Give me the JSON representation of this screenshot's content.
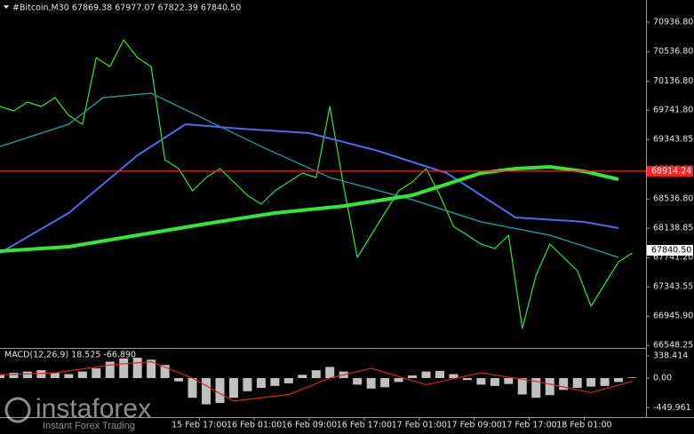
{
  "chart_data": [
    {
      "type": "line",
      "title": "#Bitcoin,M30  67869.38 67977.07 67822.39 67840.50",
      "xlim": [
        0,
        94
      ],
      "xticks": [
        {
          "value": 29,
          "label": "15 Feb 17:00"
        },
        {
          "value": 37,
          "label": "16 Feb 01:00"
        },
        {
          "value": 45,
          "label": "16 Feb 09:00"
        },
        {
          "value": 53,
          "label": "16 Feb 17:00"
        },
        {
          "value": 61,
          "label": "17 Feb 01:00"
        },
        {
          "value": 69,
          "label": "17 Feb 09:00"
        },
        {
          "value": 77,
          "label": "17 Feb 17:00"
        },
        {
          "value": 85,
          "label": "18 Feb 01:00"
        }
      ],
      "ylim": [
        66515,
        71238
      ],
      "yticks": [
        {
          "value": 70936.8,
          "label": "70936.80"
        },
        {
          "value": 70536.8,
          "label": "70536.80"
        },
        {
          "value": 70136.8,
          "label": "70136.80"
        },
        {
          "value": 69741.8,
          "label": "69741.80"
        },
        {
          "value": 69343.85,
          "label": "69343.85"
        },
        {
          "value": 68936.8,
          "label": "68936.80"
        },
        {
          "value": 68536.8,
          "label": "68536.80"
        },
        {
          "value": 68138.85,
          "label": "68138.85"
        },
        {
          "value": 67741.2,
          "label": "67741.20"
        },
        {
          "value": 67343.55,
          "label": "67343.55"
        },
        {
          "value": 66945.9,
          "label": "66945.90"
        },
        {
          "value": 66548.25,
          "label": "66548.25"
        }
      ],
      "series": [
        {
          "color": "#2ee82e",
          "x": [
            0,
            2,
            4,
            6,
            8,
            10,
            12,
            14,
            16,
            18,
            20,
            22,
            24,
            26,
            28,
            30,
            32,
            34,
            36,
            38,
            40,
            42,
            44,
            46,
            48,
            50,
            52,
            54,
            56,
            58,
            60,
            62,
            64,
            66,
            68,
            70,
            72,
            74,
            76,
            78,
            80,
            82,
            84,
            86,
            88,
            90,
            92
          ],
          "values": [
            69792,
            69732,
            69852,
            69792,
            69913,
            69672,
            69551,
            70455,
            70334,
            70696,
            70455,
            70334,
            69069,
            68949,
            68647,
            68828,
            68949,
            68768,
            68587,
            68467,
            68647,
            68768,
            68888,
            68828,
            69792,
            68708,
            67744,
            68045,
            68346,
            68647,
            68768,
            68949,
            68587,
            68165,
            68045,
            67924,
            67864,
            68045,
            66780,
            67503,
            67924,
            67744,
            67563,
            67081,
            67382,
            67683,
            67804
          ]
        },
        {
          "color": "#4a6cf0",
          "x": [
            0,
            10,
            20,
            27,
            35,
            45,
            55,
            65,
            75,
            85,
            90
          ],
          "values": [
            67804,
            68346,
            69129,
            69551,
            69491,
            69431,
            69190,
            68888,
            68286,
            68226,
            68141
          ]
        },
        {
          "color": "#1f8f9a",
          "x": [
            0,
            10,
            15,
            22,
            30,
            38,
            48,
            60,
            70,
            80,
            90
          ],
          "values": [
            69250,
            69551,
            69913,
            69973,
            69611,
            69250,
            68828,
            68527,
            68226,
            68045,
            67744
          ]
        },
        {
          "color": "#33e833",
          "x": [
            0,
            10,
            20,
            30,
            40,
            50,
            60,
            70,
            75,
            80,
            85,
            90
          ],
          "values": [
            67828,
            67888,
            68045,
            68201,
            68346,
            68442,
            68587,
            68888,
            68949,
            68973,
            68912,
            68804
          ]
        }
      ],
      "hline": {
        "value": 68914.24,
        "color": "#ff2020"
      },
      "last_price": {
        "value": 67840.5,
        "label": "67840.50"
      },
      "watermark": {
        "brand": "instaforex",
        "tagline": "Instant Forex Trading"
      }
    },
    {
      "type": "macd",
      "title": "MACD(12,26,9) 18.525 -66.890",
      "xlim": [
        0,
        94
      ],
      "ylim": [
        -595,
        446
      ],
      "yticks": [
        {
          "value": 338.414,
          "label": "338.414"
        },
        {
          "value": 0,
          "label": "0.00"
        },
        {
          "value": -449.961,
          "label": "-449.961"
        }
      ],
      "histogram": {
        "color": "#c0c0c0",
        "x": [
          0,
          2,
          4,
          6,
          8,
          10,
          12,
          14,
          16,
          18,
          20,
          22,
          24,
          26,
          28,
          30,
          32,
          34,
          36,
          38,
          40,
          42,
          44,
          46,
          48,
          50,
          52,
          54,
          56,
          58,
          60,
          62,
          64,
          66,
          68,
          70,
          72,
          74,
          76,
          78,
          80,
          82,
          84,
          86,
          88,
          90,
          92
        ],
        "values": [
          60,
          80,
          100,
          120,
          80,
          60,
          100,
          150,
          250,
          300,
          310,
          280,
          200,
          -50,
          -300,
          -400,
          -380,
          -300,
          -200,
          -150,
          -120,
          -80,
          50,
          120,
          170,
          100,
          -100,
          -160,
          -140,
          -60,
          40,
          100,
          110,
          60,
          -30,
          -100,
          -120,
          -90,
          -250,
          -300,
          -260,
          -180,
          -150,
          -130,
          -120,
          -60,
          10
        ]
      },
      "signal": {
        "color": "#e02020",
        "x": [
          0,
          8,
          16,
          22,
          28,
          34,
          42,
          48,
          54,
          62,
          70,
          78,
          86,
          92
        ],
        "values": [
          50,
          80,
          200,
          250,
          0,
          -350,
          -250,
          0,
          150,
          -100,
          80,
          -50,
          -220,
          -50
        ]
      }
    }
  ]
}
